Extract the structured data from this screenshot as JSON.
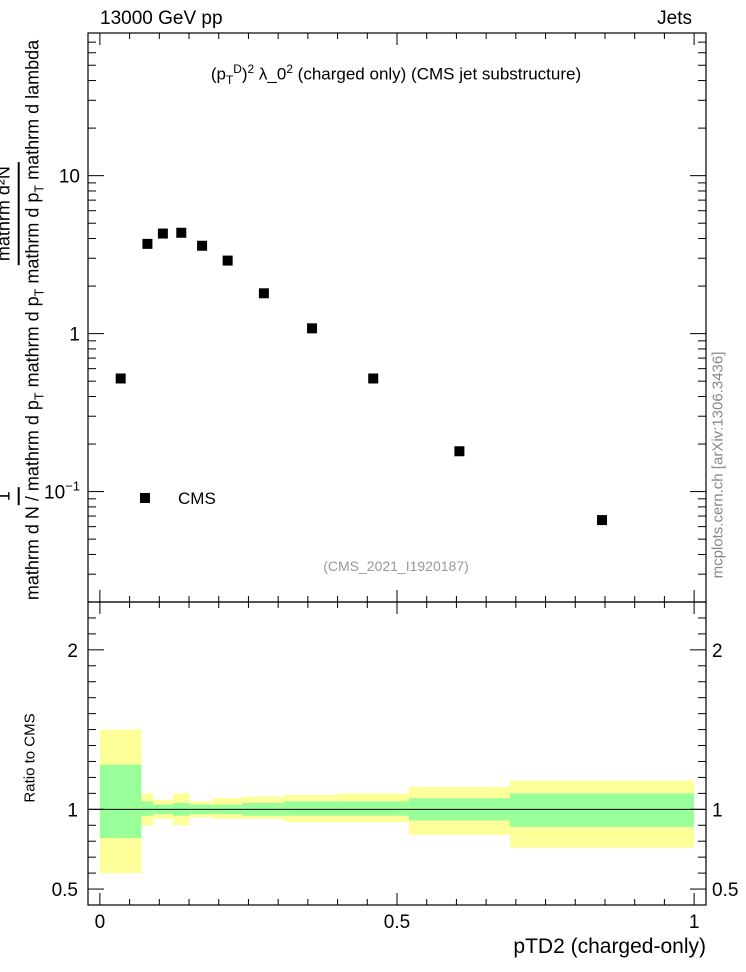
{
  "header": {
    "left": "13000 GeV pp",
    "right": "Jets"
  },
  "watermark": "mcplots.cern.ch [arXiv:1306.3436]",
  "chart_data": {
    "type": "scatter",
    "title": "(p_T^D)^2 λ_0^2 (charged only) (CMS jet substructure)",
    "title_parts": {
      "pre": "(p",
      "sub": "T",
      "sup": "D",
      "mid": ")",
      "sup2": "2",
      "post": " λ_0",
      "sup3": "2",
      "tail": " (charged only) (CMS jet substructure)"
    },
    "analysis_id": "(CMS_2021_I1920187)",
    "ylabel": {
      "numerator": "1",
      "denominator": "mathrm d N / mathrm d p _T mathrm d p _T mathrm d lambda",
      "extra_numerator": "mathrm d²N"
    },
    "ylabel_text": {
      "one": "1",
      "den": "mathrm d N / mathrm d p",
      "den_sub": "T",
      "num": "mathrm d²N",
      "num_den": "mathrm d p",
      "num_den_sub": "T",
      "num_tail": "mathrm d p",
      "num_tail_sub": "T",
      "num_end": "mathrm d lambda"
    },
    "xlabel": "pTD2 (charged-only)",
    "ratio_ylabel": "Ratio to CMS",
    "legend": [
      {
        "name": "CMS",
        "marker": "square",
        "color": "#000000",
        "position": "lower-left"
      }
    ],
    "x_range": [
      -0.02,
      1.02
    ],
    "y_range_log": [
      0.02,
      80
    ],
    "ratio_range": [
      0.4,
      2.3
    ],
    "x_ticks": [
      {
        "v": 0,
        "label": "0"
      },
      {
        "v": 0.5,
        "label": "0.5"
      },
      {
        "v": 1,
        "label": "1"
      }
    ],
    "y_ticks": [
      {
        "v": 0.1,
        "label": "10",
        "sup": "−1"
      },
      {
        "v": 1,
        "label": "1"
      },
      {
        "v": 10,
        "label": "10"
      }
    ],
    "ratio_ticks": [
      {
        "v": 0.5,
        "label": "0.5"
      },
      {
        "v": 1,
        "label": "1"
      },
      {
        "v": 2,
        "label": "2"
      }
    ],
    "series": [
      {
        "name": "CMS",
        "x": [
          0.035,
          0.08,
          0.106,
          0.137,
          0.172,
          0.215,
          0.276,
          0.357,
          0.46,
          0.605,
          0.845
        ],
        "y": [
          0.52,
          3.7,
          4.3,
          4.35,
          3.6,
          2.9,
          1.8,
          1.08,
          0.52,
          0.18,
          0.066
        ]
      }
    ],
    "bands": [
      {
        "x0": 0.0,
        "x1": 0.07,
        "in": [
          0.82,
          1.28
        ],
        "out": [
          0.6,
          1.5
        ]
      },
      {
        "x0": 0.07,
        "x1": 0.09,
        "in": [
          0.96,
          1.05
        ],
        "out": [
          0.9,
          1.1
        ]
      },
      {
        "x0": 0.09,
        "x1": 0.123,
        "in": [
          0.97,
          1.03
        ],
        "out": [
          0.94,
          1.06
        ]
      },
      {
        "x0": 0.123,
        "x1": 0.151,
        "in": [
          0.96,
          1.04
        ],
        "out": [
          0.9,
          1.1
        ]
      },
      {
        "x0": 0.151,
        "x1": 0.19,
        "in": [
          0.97,
          1.03
        ],
        "out": [
          0.95,
          1.05
        ]
      },
      {
        "x0": 0.19,
        "x1": 0.24,
        "in": [
          0.97,
          1.03
        ],
        "out": [
          0.94,
          1.07
        ]
      },
      {
        "x0": 0.24,
        "x1": 0.31,
        "in": [
          0.96,
          1.04
        ],
        "out": [
          0.94,
          1.08
        ]
      },
      {
        "x0": 0.31,
        "x1": 0.4,
        "in": [
          0.96,
          1.05
        ],
        "out": [
          0.92,
          1.09
        ]
      },
      {
        "x0": 0.4,
        "x1": 0.52,
        "in": [
          0.96,
          1.05
        ],
        "out": [
          0.92,
          1.1
        ]
      },
      {
        "x0": 0.52,
        "x1": 0.69,
        "in": [
          0.93,
          1.07
        ],
        "out": [
          0.84,
          1.14
        ]
      },
      {
        "x0": 0.69,
        "x1": 1.0,
        "in": [
          0.89,
          1.1
        ],
        "out": [
          0.76,
          1.18
        ]
      }
    ],
    "band_colors": {
      "inner": "#99ff99",
      "outer": "#ffff99"
    },
    "grid": false
  }
}
